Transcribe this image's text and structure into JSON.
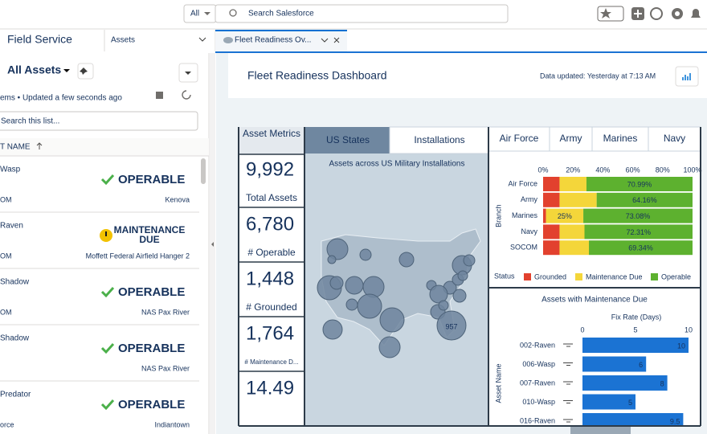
{
  "header": {
    "search_scope": "All",
    "search_placeholder": "Search Salesforce"
  },
  "nav": {
    "app_name": "Field Service",
    "object_tab": "Assets",
    "active_tab": "Fleet Readiness Ov..."
  },
  "list_view": {
    "title": "All Assets",
    "status": "ems • Updated a few seconds ago",
    "search_placeholder": "Search this list...",
    "column": "T NAME",
    "rows": [
      {
        "name": "Wasp",
        "status": [
          "OPERABLE"
        ],
        "sub": "OM",
        "location": "Kenova"
      },
      {
        "name": "Raven",
        "status": [
          "MAINTENANCE",
          "DUE"
        ],
        "sub": "OM",
        "location": "Moffett Federal Airfield Hanger 2"
      },
      {
        "name": "Shadow",
        "status": [
          "OPERABLE"
        ],
        "sub": "OM",
        "location": "NAS Pax River"
      },
      {
        "name": "Shadow",
        "status": [
          "OPERABLE"
        ],
        "location": "NAS Pax River"
      },
      {
        "name": "Predator",
        "status": [
          "OPERABLE"
        ],
        "sub": "orce",
        "location": "Indiantown"
      }
    ]
  },
  "dashboard": {
    "title": "Fleet Readiness Dashboard",
    "updated": "Data updated: Yesterday at 7:13 AM",
    "metrics_header": "Asset Metrics",
    "metrics": [
      {
        "value": "9,992",
        "label": "Total Assets"
      },
      {
        "value": "6,780",
        "label": "# Operable"
      },
      {
        "value": "1,448",
        "label": "# Grounded"
      },
      {
        "value": "1,764",
        "label": "# Maintenance D..."
      },
      {
        "value": "14.49"
      }
    ],
    "map_tabs": [
      "US States",
      "Installations"
    ],
    "map_title": "Assets across US Military Installations",
    "map_bubble_label": "957",
    "branch_tabs": [
      "Air Force",
      "Army",
      "Marines",
      "Navy"
    ]
  },
  "chart_data": [
    {
      "type": "stacked_bar",
      "categories": [
        "Air Force",
        "Army",
        "Marines",
        "Navy",
        "SOCOM"
      ],
      "series": [
        {
          "name": "Grounded",
          "color": "#e2412e",
          "values": [
            11,
            11,
            1.92,
            11,
            11
          ]
        },
        {
          "name": "Maintenance Due",
          "color": "#f4d63a",
          "values": [
            18.01,
            24.84,
            25,
            16.69,
            19.66
          ],
          "value_labels": [
            null,
            null,
            "25%",
            null,
            null
          ]
        },
        {
          "name": "Operable",
          "color": "#5db12f",
          "values": [
            70.99,
            64.16,
            73.08,
            72.31,
            69.34
          ],
          "value_labels": [
            "70.99%",
            "64.16%",
            "73.08%",
            "72.31%",
            "69.34%"
          ]
        }
      ],
      "xlim": [
        0,
        100
      ],
      "xticks": [
        {
          "value": 0,
          "label": "0%"
        },
        {
          "value": 20,
          "label": "20%"
        },
        {
          "value": 40,
          "label": "40%"
        },
        {
          "value": 60,
          "label": "60%"
        },
        {
          "value": 80,
          "label": "80%"
        },
        {
          "value": 100,
          "label": "100%"
        }
      ],
      "ylabel": "Branch",
      "legend_title": "Status"
    },
    {
      "type": "bar",
      "title": "Assets with Maintenance Due",
      "xlabel": "Fix Rate (Days)",
      "ylabel": "Asset Name",
      "categories": [
        "002-Raven",
        "006-Wasp",
        "007-Raven",
        "010-Wasp",
        "016-Raven"
      ],
      "values": [
        10,
        6,
        8,
        5,
        9.5
      ],
      "color": "#1b73d3",
      "xlim": [
        0,
        10
      ],
      "xticks": [
        0,
        5,
        10
      ]
    }
  ]
}
